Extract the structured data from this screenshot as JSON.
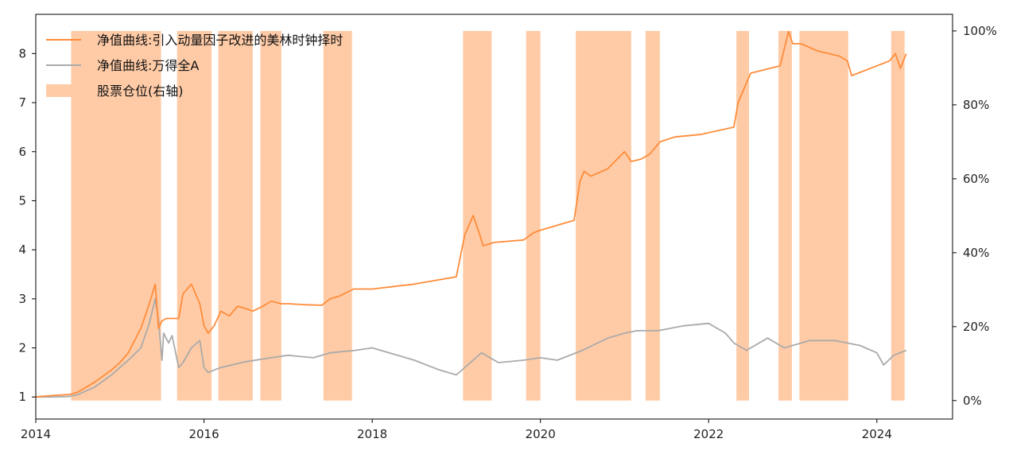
{
  "chart_data": {
    "type": "line",
    "title": "",
    "xlabel": "",
    "ylabel": "",
    "xlim": [
      2014.0,
      2024.9
    ],
    "ylim": [
      0.55,
      8.8
    ],
    "y2lim": [
      -0.05,
      1.045
    ],
    "x_ticks": [
      2014,
      2016,
      2018,
      2020,
      2022,
      2024
    ],
    "x_tick_labels": [
      "2014",
      "2016",
      "2018",
      "2020",
      "2022",
      "2024"
    ],
    "y_ticks": [
      1,
      2,
      3,
      4,
      5,
      6,
      7,
      8
    ],
    "y_tick_labels": [
      "1",
      "2",
      "3",
      "4",
      "5",
      "6",
      "7",
      "8"
    ],
    "y2_ticks": [
      0,
      0.2,
      0.4,
      0.6,
      0.8,
      1.0
    ],
    "y2_tick_labels": [
      "0%",
      "20%",
      "40%",
      "60%",
      "80%",
      "100%"
    ],
    "grid": false,
    "legend_position": "top-left",
    "colors": {
      "strategy": "#ff8c3a",
      "index": "#aaaaaa",
      "position": "#ffcba6"
    },
    "series": [
      {
        "name": "净值曲线:引入动量因子改进的美林时钟择时",
        "axis": "left",
        "x": [
          2014.0,
          2014.2,
          2014.4,
          2014.5,
          2014.7,
          2014.9,
          2015.0,
          2015.1,
          2015.25,
          2015.35,
          2015.42,
          2015.46,
          2015.5,
          2015.55,
          2015.7,
          2015.75,
          2015.85,
          2015.95,
          2016.0,
          2016.05,
          2016.12,
          2016.2,
          2016.3,
          2016.4,
          2016.5,
          2016.58,
          2016.7,
          2016.8,
          2016.92,
          2017.0,
          2017.2,
          2017.4,
          2017.5,
          2017.6,
          2017.78,
          2018.0,
          2018.5,
          2019.0,
          2019.1,
          2019.2,
          2019.28,
          2019.32,
          2019.45,
          2019.8,
          2019.92,
          2020.0,
          2020.4,
          2020.47,
          2020.52,
          2020.6,
          2020.8,
          2021.0,
          2021.08,
          2021.2,
          2021.3,
          2021.42,
          2021.6,
          2021.9,
          2022.3,
          2022.35,
          2022.5,
          2022.85,
          2022.95,
          2023.0,
          2023.1,
          2023.3,
          2023.55,
          2023.65,
          2023.7,
          2024.0,
          2024.15,
          2024.22,
          2024.28,
          2024.35
        ],
        "y": [
          1.0,
          1.03,
          1.05,
          1.1,
          1.3,
          1.55,
          1.7,
          1.9,
          2.4,
          2.9,
          3.3,
          2.4,
          2.55,
          2.6,
          2.6,
          3.1,
          3.3,
          2.9,
          2.45,
          2.3,
          2.45,
          2.75,
          2.65,
          2.85,
          2.8,
          2.75,
          2.85,
          2.95,
          2.9,
          2.9,
          2.88,
          2.87,
          3.0,
          3.05,
          3.2,
          3.2,
          3.3,
          3.45,
          4.3,
          4.7,
          4.3,
          4.08,
          4.15,
          4.2,
          4.35,
          4.4,
          4.6,
          5.4,
          5.6,
          5.5,
          5.65,
          6.0,
          5.8,
          5.85,
          5.95,
          6.2,
          6.3,
          6.35,
          6.5,
          7.0,
          7.6,
          7.75,
          8.45,
          8.2,
          8.2,
          8.05,
          7.95,
          7.85,
          7.55,
          7.75,
          7.85,
          8.0,
          7.7,
          8.0
        ]
      },
      {
        "name": "净值曲线:万得全A",
        "axis": "left",
        "x": [
          2014.0,
          2014.2,
          2014.4,
          2014.5,
          2014.7,
          2014.9,
          2015.0,
          2015.1,
          2015.25,
          2015.35,
          2015.42,
          2015.46,
          2015.5,
          2015.52,
          2015.58,
          2015.62,
          2015.7,
          2015.75,
          2015.85,
          2015.95,
          2016.0,
          2016.05,
          2016.12,
          2016.2,
          2016.5,
          2016.8,
          2017.0,
          2017.3,
          2017.5,
          2017.8,
          2018.0,
          2018.5,
          2018.8,
          2019.0,
          2019.2,
          2019.3,
          2019.5,
          2019.8,
          2020.0,
          2020.2,
          2020.5,
          2020.8,
          2021.0,
          2021.15,
          2021.4,
          2021.7,
          2022.0,
          2022.2,
          2022.3,
          2022.45,
          2022.7,
          2022.9,
          2023.2,
          2023.5,
          2023.8,
          2024.0,
          2024.08,
          2024.2,
          2024.35
        ],
        "y": [
          1.0,
          1.0,
          1.01,
          1.05,
          1.2,
          1.45,
          1.6,
          1.75,
          2.0,
          2.5,
          3.0,
          2.55,
          1.75,
          2.3,
          2.1,
          2.25,
          1.6,
          1.7,
          2.0,
          2.15,
          1.6,
          1.5,
          1.55,
          1.6,
          1.72,
          1.8,
          1.85,
          1.8,
          1.9,
          1.95,
          2.0,
          1.75,
          1.55,
          1.45,
          1.75,
          1.9,
          1.7,
          1.75,
          1.8,
          1.75,
          1.95,
          2.2,
          2.3,
          2.35,
          2.35,
          2.45,
          2.5,
          2.3,
          2.1,
          1.95,
          2.2,
          2.0,
          2.15,
          2.15,
          2.05,
          1.9,
          1.65,
          1.85,
          1.95
        ]
      }
    ],
    "position_series": {
      "name": "股票仓位(右轴)",
      "axis": "right",
      "value": 1.0,
      "spans": [
        [
          2014.42,
          2015.49
        ],
        [
          2015.68,
          2016.09
        ],
        [
          2016.17,
          2016.58
        ],
        [
          2016.67,
          2016.92
        ],
        [
          2017.42,
          2017.76
        ],
        [
          2019.08,
          2019.42
        ],
        [
          2019.83,
          2020.0
        ],
        [
          2020.42,
          2021.08
        ],
        [
          2021.25,
          2021.42
        ],
        [
          2022.33,
          2022.48
        ],
        [
          2022.83,
          2022.99
        ],
        [
          2023.08,
          2023.66
        ],
        [
          2024.17,
          2024.33
        ]
      ]
    },
    "legend": [
      {
        "label": "净值曲线:引入动量因子改进的美林时钟择时",
        "kind": "line",
        "color": "#ff8c3a"
      },
      {
        "label": "净值曲线:万得全A",
        "kind": "line",
        "color": "#aaaaaa"
      },
      {
        "label": "股票仓位(右轴)",
        "kind": "patch",
        "color": "#ffcba6"
      }
    ]
  }
}
